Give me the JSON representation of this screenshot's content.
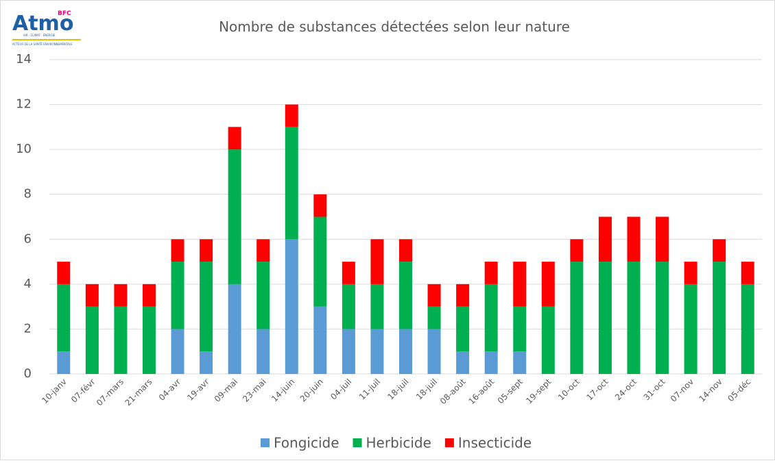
{
  "logo": {
    "name": "Atmo",
    "superscript": "BFC",
    "tagline": "AIR · CLIMAT · ÉNERGIE",
    "motto": "ACTEUR DE LA SANTÉ ENVIRONNEMENTALE"
  },
  "chart_data": {
    "type": "stacked-bar",
    "title": "Nombre de substances détectées selon leur nature",
    "categories": [
      "10-janv",
      "07-févr",
      "07-mars",
      "21-mars",
      "04-avr",
      "19-avr",
      "09-mai",
      "23-mai",
      "14-juin",
      "20-juin",
      "04-juil",
      "11-juil",
      "18-juil",
      "18-juil",
      "08-août",
      "16-août",
      "05-sept",
      "19-sept",
      "10-oct",
      "17-oct",
      "24-oct",
      "31-oct",
      "07-nov",
      "14-nov",
      "05-déc"
    ],
    "series": [
      {
        "name": "Fongicide",
        "color": "#5b9bd5",
        "values": [
          1,
          0,
          0,
          0,
          2,
          1,
          4,
          2,
          6,
          3,
          2,
          2,
          2,
          2,
          1,
          1,
          1,
          0,
          0,
          0,
          0,
          0,
          0,
          0,
          0
        ]
      },
      {
        "name": "Herbicide",
        "color": "#00b050",
        "values": [
          3,
          3,
          3,
          3,
          3,
          4,
          6,
          3,
          5,
          4,
          2,
          2,
          3,
          1,
          2,
          3,
          2,
          3,
          5,
          5,
          5,
          5,
          4,
          5,
          4
        ]
      },
      {
        "name": "Insecticide",
        "color": "#ff0000",
        "values": [
          1,
          1,
          1,
          1,
          1,
          1,
          1,
          1,
          1,
          1,
          1,
          2,
          1,
          1,
          1,
          1,
          2,
          2,
          1,
          2,
          2,
          2,
          1,
          1,
          1
        ]
      }
    ],
    "ylim": [
      0,
      14
    ],
    "yticks": [
      0,
      2,
      4,
      6,
      8,
      10,
      12,
      14
    ],
    "grid": true,
    "legend": "bottom"
  }
}
